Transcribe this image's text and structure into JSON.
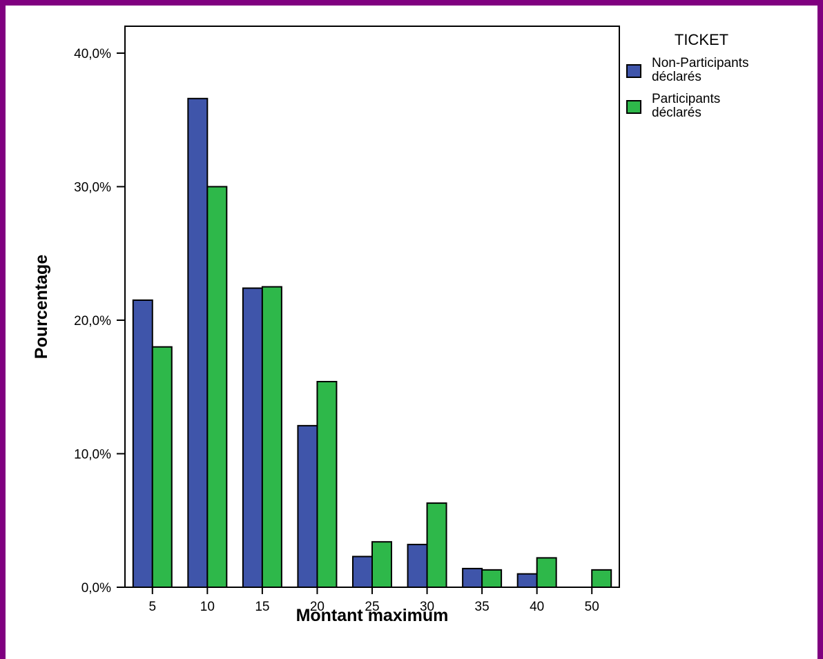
{
  "chart_data": {
    "type": "bar",
    "xlabel": "Montant maximum",
    "ylabel": "Pourcentage",
    "ylim": [
      0,
      0.4
    ],
    "yticks": [
      0,
      0.1,
      0.2,
      0.3,
      0.4
    ],
    "ytick_labels": [
      "0,0%",
      "10,0%",
      "20,0%",
      "30,0%",
      "40,0%"
    ],
    "categories": [
      "5",
      "10",
      "15",
      "20",
      "25",
      "30",
      "35",
      "40",
      "50"
    ],
    "legend": {
      "title": "TICKET",
      "placement": "right"
    },
    "series": [
      {
        "name": "Non-Participants déclarés",
        "name_lines": [
          "Non-Participants",
          "déclarés"
        ],
        "color": "#3F55AA",
        "values": [
          0.215,
          0.366,
          0.224,
          0.121,
          0.023,
          0.032,
          0.014,
          0.01,
          0.0
        ]
      },
      {
        "name": "Participants déclarés",
        "name_lines": [
          "Participants",
          "déclarés"
        ],
        "color": "#2EB84A",
        "values": [
          0.18,
          0.3,
          0.225,
          0.154,
          0.034,
          0.063,
          0.013,
          0.022,
          0.013
        ]
      }
    ],
    "grid": false
  }
}
